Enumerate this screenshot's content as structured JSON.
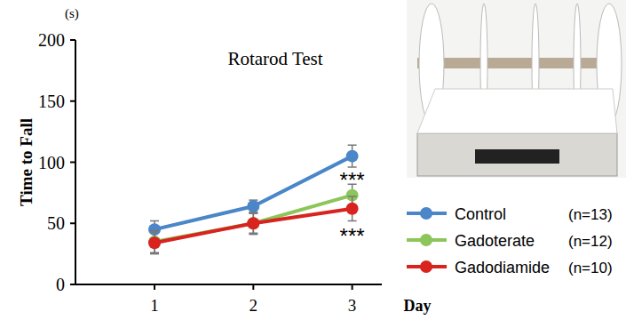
{
  "chart_data": {
    "type": "line",
    "title": "Rotarod Test",
    "x_label": "Day",
    "y_label": "Time to Fall",
    "y_unit_label": "(s)",
    "x": [
      1,
      2,
      3
    ],
    "xlim": [
      0.2,
      3.3
    ],
    "xticks": [
      1,
      2,
      3
    ],
    "ylim": [
      0,
      200
    ],
    "yticks": [
      0,
      50,
      100,
      150,
      200
    ],
    "grid": false,
    "marker": "circle",
    "legend": "right",
    "series": [
      {
        "name": "Control",
        "n_label": "(n=13)",
        "color": "#4a86c8",
        "values": [
          45,
          64,
          105
        ],
        "errors": [
          7,
          5,
          9
        ]
      },
      {
        "name": "Gadoterate",
        "n_label": "(n=12)",
        "color": "#8cc65a",
        "values": [
          35,
          50,
          73
        ],
        "errors": [
          9,
          8,
          9
        ]
      },
      {
        "name": "Gadodiamide",
        "n_label": "(n=10)",
        "color": "#d8231f",
        "values": [
          34,
          50,
          62
        ],
        "errors": [
          9,
          9,
          10
        ]
      }
    ],
    "annotations": [
      {
        "text": "***",
        "x": 3,
        "y": 88
      },
      {
        "text": "***",
        "x": 3,
        "y": 42
      }
    ]
  }
}
